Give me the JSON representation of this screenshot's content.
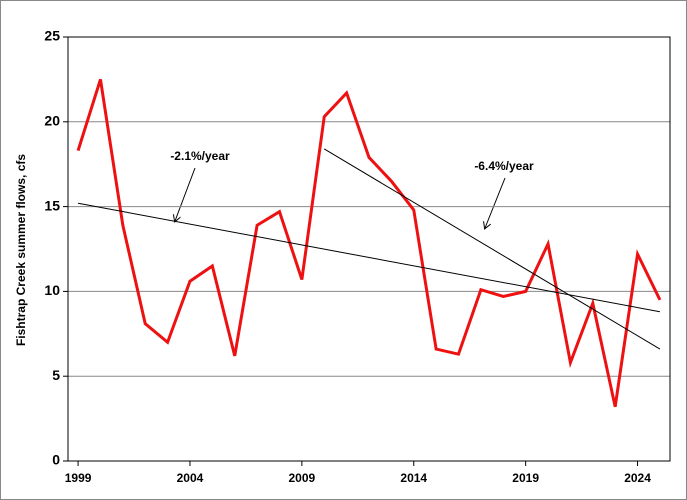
{
  "chart_data": {
    "type": "line",
    "y_label": "Fishtrap Creek summer flows, cfs",
    "x": [
      1999,
      2000,
      2001,
      2002,
      2003,
      2004,
      2005,
      2006,
      2007,
      2008,
      2009,
      2010,
      2011,
      2012,
      2013,
      2014,
      2015,
      2016,
      2017,
      2018,
      2019,
      2020,
      2021,
      2022,
      2023,
      2024,
      2025
    ],
    "series": [
      {
        "color": "#ee1111",
        "values": [
          18.3,
          22.5,
          13.9,
          8.1,
          7.0,
          10.6,
          11.5,
          6.2,
          13.9,
          14.7,
          10.7,
          20.3,
          21.7,
          17.9,
          16.5,
          14.8,
          6.6,
          6.3,
          10.1,
          9.7,
          10.0,
          12.8,
          5.8,
          9.3,
          3.2,
          12.2,
          9.5
        ]
      },
      {
        "color": "#000000",
        "x": [
          1999,
          2025
        ],
        "values": [
          15.2,
          8.8
        ]
      },
      {
        "color": "#000000",
        "x": [
          2010,
          2025
        ],
        "values": [
          18.4,
          6.6
        ]
      }
    ],
    "annotations": [
      "-2.1%/year",
      "-6.4%/year"
    ],
    "xlim": [
      1998.55,
      2025.45
    ],
    "xticks": [
      1999,
      2004,
      2009,
      2014,
      2019,
      2024
    ],
    "ylim": [
      0,
      25
    ],
    "yticks": [
      0,
      5,
      10,
      15,
      20,
      25
    ],
    "grid": true
  }
}
